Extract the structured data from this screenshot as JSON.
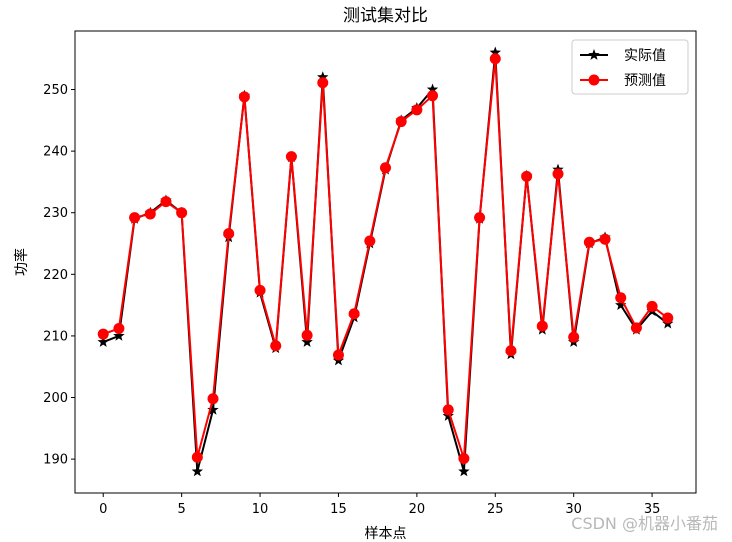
{
  "chart_data": {
    "type": "line",
    "title": "测试集对比",
    "xlabel": "样本点",
    "ylabel": "功率",
    "xlim": [
      -1.8,
      37.8
    ],
    "ylim": [
      184.5,
      259.5
    ],
    "xticks": [
      0,
      5,
      10,
      15,
      20,
      25,
      30,
      35
    ],
    "yticks": [
      190,
      200,
      210,
      220,
      230,
      240,
      250
    ],
    "legend_position": "top-right",
    "grid": false,
    "x": [
      0,
      1,
      2,
      3,
      4,
      5,
      6,
      7,
      8,
      9,
      10,
      11,
      12,
      13,
      14,
      15,
      16,
      17,
      18,
      19,
      20,
      21,
      22,
      23,
      24,
      25,
      26,
      27,
      28,
      29,
      30,
      31,
      32,
      33,
      34,
      35,
      36
    ],
    "series": [
      {
        "name": "实际值",
        "color": "#000000",
        "marker": "star",
        "values": [
          209,
          210,
          229,
          230,
          232,
          230,
          188,
          198,
          226,
          249,
          217,
          208,
          239,
          209,
          252,
          206,
          213,
          225,
          237,
          245,
          247,
          250,
          197,
          188,
          229,
          256,
          207,
          236,
          211,
          237,
          209,
          225,
          226,
          215,
          211,
          214,
          212
        ]
      },
      {
        "name": "预测值",
        "color": "#ff0000",
        "marker": "circle",
        "values": [
          210.3,
          211.2,
          229.2,
          229.8,
          231.8,
          230.0,
          190.3,
          199.8,
          226.6,
          248.8,
          217.4,
          208.4,
          239.1,
          210.1,
          251.1,
          206.9,
          213.6,
          225.4,
          237.3,
          244.8,
          246.7,
          249.0,
          198.0,
          190.1,
          229.2,
          255.0,
          207.6,
          235.9,
          211.6,
          236.3,
          209.8,
          225.2,
          225.7,
          216.2,
          211.3,
          214.8,
          212.9
        ]
      }
    ]
  },
  "watermark": "CSDN @机器小番茄"
}
